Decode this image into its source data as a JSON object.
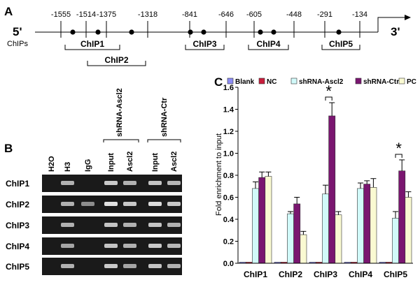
{
  "panels": {
    "a": "A",
    "b": "B",
    "c": "C"
  },
  "schematic": {
    "five_prime": "5'",
    "three_prime": "3'",
    "row_label": "ChIPs",
    "positions": [
      "-1555",
      "-1514",
      "-1375",
      "-1318",
      "-841",
      "-646",
      "-605",
      "-448",
      "-291",
      "-134"
    ],
    "regions": [
      "ChIP1",
      "ChIP2",
      "ChIP3",
      "ChIP4",
      "ChIP5"
    ]
  },
  "gel": {
    "lanes": [
      "H2O",
      "H3",
      "IgG",
      "Input",
      "Ascl2",
      "Input",
      "Ascl2"
    ],
    "groups": [
      "shRNA-Ascl2",
      "shRNA-Ctr"
    ],
    "rows": [
      "ChIP1",
      "ChIP2",
      "ChIP3",
      "ChIP4",
      "ChIP5"
    ]
  },
  "chart_data": {
    "type": "bar",
    "ylabel": "Fold enrichment to input",
    "ylim": [
      0,
      1.6
    ],
    "yticks": [
      "0.0",
      "0.2",
      "0.4",
      "0.6",
      "0.8",
      "1.0",
      "1.2",
      "1.4",
      "1.6"
    ],
    "categories": [
      "ChIP1",
      "ChIP2",
      "ChIP3",
      "ChIP4",
      "ChIP5"
    ],
    "legend_position": "top",
    "series": [
      {
        "name": "Blank",
        "color": "#8c8cf5",
        "values": [
          0.01,
          0.01,
          0.01,
          0.01,
          0.01
        ],
        "errors": [
          0,
          0,
          0,
          0,
          0
        ]
      },
      {
        "name": "NC",
        "color": "#c81e3c",
        "values": [
          0.01,
          0.01,
          0.01,
          0.01,
          0.01
        ],
        "errors": [
          0,
          0,
          0,
          0,
          0
        ]
      },
      {
        "name": "shRNA-Ascl2",
        "color": "#d2fafa",
        "values": [
          0.68,
          0.45,
          0.63,
          0.68,
          0.41
        ],
        "errors": [
          0.06,
          0.02,
          0.08,
          0.05,
          0.06
        ]
      },
      {
        "name": "shRNA-Ctr",
        "color": "#7a1670",
        "values": [
          0.78,
          0.54,
          1.34,
          0.72,
          0.84
        ],
        "errors": [
          0.05,
          0.06,
          0.12,
          0.03,
          0.1
        ]
      },
      {
        "name": "PC",
        "color": "#fafad2",
        "values": [
          0.79,
          0.26,
          0.44,
          0.69,
          0.6
        ],
        "errors": [
          0.04,
          0.03,
          0.03,
          0.08,
          0.05
        ]
      }
    ],
    "significance": [
      {
        "category": "ChIP3",
        "label": "*"
      },
      {
        "category": "ChIP5",
        "label": "*"
      }
    ]
  }
}
